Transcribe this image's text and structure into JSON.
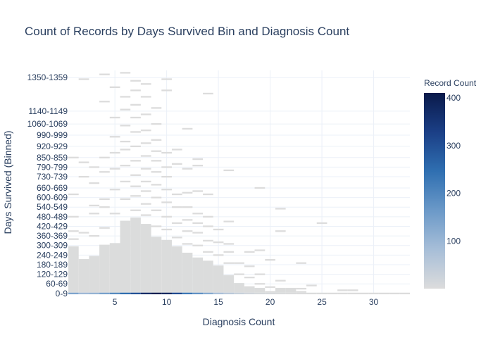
{
  "chart_data": {
    "type": "heatmap",
    "title": "Count of Records by Days Survived Bin and Diagnosis Count",
    "xlabel": "Diagnosis Count",
    "ylabel": "Days Survived (Binned)",
    "x_ticks": [
      5,
      10,
      15,
      20,
      25,
      30
    ],
    "y_tick_labels": [
      "0-9",
      "60-69",
      "120-129",
      "180-189",
      "240-249",
      "300-309",
      "360-369",
      "420-429",
      "480-489",
      "540-549",
      "600-609",
      "660-669",
      "730-739",
      "790-799",
      "850-859",
      "920-929",
      "990-999",
      "1060-1069",
      "1140-1149",
      "1350-1359"
    ],
    "colorbar": {
      "title": "Record Count",
      "ticks": [
        100,
        200,
        300,
        400
      ],
      "range": [
        1,
        410
      ],
      "colorscale": [
        "#dcdcdc",
        "#a7bed8",
        "#6b99c8",
        "#2f6fb1",
        "#1b3f86",
        "#0a1a4a"
      ]
    },
    "bottom_row_0_9": [
      {
        "x": 1,
        "count": 140
      },
      {
        "x": 2,
        "count": 95
      },
      {
        "x": 3,
        "count": 110
      },
      {
        "x": 4,
        "count": 150
      },
      {
        "x": 5,
        "count": 195
      },
      {
        "x": 6,
        "count": 250
      },
      {
        "x": 7,
        "count": 300
      },
      {
        "x": 8,
        "count": 370
      },
      {
        "x": 9,
        "count": 400
      },
      {
        "x": 10,
        "count": 380
      },
      {
        "x": 11,
        "count": 310
      },
      {
        "x": 12,
        "count": 230
      },
      {
        "x": 13,
        "count": 180
      },
      {
        "x": 14,
        "count": 130
      },
      {
        "x": 15,
        "count": 80
      },
      {
        "x": 16,
        "count": 55
      },
      {
        "x": 17,
        "count": 35
      },
      {
        "x": 18,
        "count": 20
      },
      {
        "x": 19,
        "count": 12
      },
      {
        "x": 20,
        "count": 8
      },
      {
        "x": 21,
        "count": 5
      },
      {
        "x": 22,
        "count": 4
      },
      {
        "x": 23,
        "count": 3
      },
      {
        "x": 24,
        "count": 2
      },
      {
        "x": 25,
        "count": 2
      },
      {
        "x": 26,
        "count": 1
      },
      {
        "x": 27,
        "count": 1
      },
      {
        "x": 28,
        "count": 1
      },
      {
        "x": 29,
        "count": 1
      },
      {
        "x": 30,
        "count": 1
      },
      {
        "x": 31,
        "count": 1
      },
      {
        "x": 32,
        "count": 1
      },
      {
        "x": 33,
        "count": 1
      }
    ],
    "filled_column_extent_days": [
      {
        "x": 1,
        "max_day": 290
      },
      {
        "x": 2,
        "max_day": 210
      },
      {
        "x": 3,
        "max_day": 230
      },
      {
        "x": 4,
        "max_day": 300
      },
      {
        "x": 5,
        "max_day": 310
      },
      {
        "x": 6,
        "max_day": 450
      },
      {
        "x": 7,
        "max_day": 470
      },
      {
        "x": 8,
        "max_day": 430
      },
      {
        "x": 9,
        "max_day": 350
      },
      {
        "x": 10,
        "max_day": 330
      },
      {
        "x": 11,
        "max_day": 290
      },
      {
        "x": 12,
        "max_day": 250
      },
      {
        "x": 13,
        "max_day": 220
      },
      {
        "x": 14,
        "max_day": 200
      },
      {
        "x": 15,
        "max_day": 170
      },
      {
        "x": 16,
        "max_day": 110
      },
      {
        "x": 17,
        "max_day": 60
      },
      {
        "x": 18,
        "max_day": 40
      },
      {
        "x": 19,
        "max_day": 30
      },
      {
        "x": 20,
        "max_day": 10
      },
      {
        "x": 21,
        "max_day": 30
      },
      {
        "x": 22,
        "max_day": 30
      },
      {
        "x": 23,
        "max_day": 10
      }
    ],
    "sparse_cells": [
      {
        "x": 1,
        "day_bin_start": 340
      },
      {
        "x": 1,
        "day_bin_start": 390
      },
      {
        "x": 1,
        "day_bin_start": 480
      },
      {
        "x": 1,
        "day_bin_start": 620
      },
      {
        "x": 1,
        "day_bin_start": 850
      },
      {
        "x": 2,
        "day_bin_start": 380
      },
      {
        "x": 2,
        "day_bin_start": 730
      },
      {
        "x": 2,
        "day_bin_start": 820
      },
      {
        "x": 2,
        "day_bin_start": 1340
      },
      {
        "x": 3,
        "day_bin_start": 360
      },
      {
        "x": 3,
        "day_bin_start": 500
      },
      {
        "x": 3,
        "day_bin_start": 550
      },
      {
        "x": 3,
        "day_bin_start": 690
      },
      {
        "x": 3,
        "day_bin_start": 790
      },
      {
        "x": 4,
        "day_bin_start": 410
      },
      {
        "x": 4,
        "day_bin_start": 540
      },
      {
        "x": 4,
        "day_bin_start": 590
      },
      {
        "x": 4,
        "day_bin_start": 760
      },
      {
        "x": 4,
        "day_bin_start": 850
      },
      {
        "x": 4,
        "day_bin_start": 1200
      },
      {
        "x": 4,
        "day_bin_start": 1370
      },
      {
        "x": 5,
        "day_bin_start": 500
      },
      {
        "x": 5,
        "day_bin_start": 650
      },
      {
        "x": 5,
        "day_bin_start": 780
      },
      {
        "x": 5,
        "day_bin_start": 880
      },
      {
        "x": 5,
        "day_bin_start": 980
      },
      {
        "x": 5,
        "day_bin_start": 1100
      },
      {
        "x": 5,
        "day_bin_start": 1290
      },
      {
        "x": 6,
        "day_bin_start": 590
      },
      {
        "x": 6,
        "day_bin_start": 700
      },
      {
        "x": 6,
        "day_bin_start": 800
      },
      {
        "x": 6,
        "day_bin_start": 900
      },
      {
        "x": 6,
        "day_bin_start": 950
      },
      {
        "x": 6,
        "day_bin_start": 1050
      },
      {
        "x": 6,
        "day_bin_start": 1150
      },
      {
        "x": 6,
        "day_bin_start": 1230
      },
      {
        "x": 6,
        "day_bin_start": 1380
      },
      {
        "x": 7,
        "day_bin_start": 520
      },
      {
        "x": 7,
        "day_bin_start": 610
      },
      {
        "x": 7,
        "day_bin_start": 670
      },
      {
        "x": 7,
        "day_bin_start": 740
      },
      {
        "x": 7,
        "day_bin_start": 830
      },
      {
        "x": 7,
        "day_bin_start": 920
      },
      {
        "x": 7,
        "day_bin_start": 1010
      },
      {
        "x": 7,
        "day_bin_start": 1100
      },
      {
        "x": 7,
        "day_bin_start": 1180
      },
      {
        "x": 7,
        "day_bin_start": 1270
      },
      {
        "x": 7,
        "day_bin_start": 1330
      },
      {
        "x": 8,
        "day_bin_start": 490
      },
      {
        "x": 8,
        "day_bin_start": 560
      },
      {
        "x": 8,
        "day_bin_start": 640
      },
      {
        "x": 8,
        "day_bin_start": 700
      },
      {
        "x": 8,
        "day_bin_start": 780
      },
      {
        "x": 8,
        "day_bin_start": 860
      },
      {
        "x": 8,
        "day_bin_start": 940
      },
      {
        "x": 8,
        "day_bin_start": 1020
      },
      {
        "x": 8,
        "day_bin_start": 1120
      },
      {
        "x": 8,
        "day_bin_start": 1230
      },
      {
        "x": 8,
        "day_bin_start": 1310
      },
      {
        "x": 9,
        "day_bin_start": 420
      },
      {
        "x": 9,
        "day_bin_start": 520
      },
      {
        "x": 9,
        "day_bin_start": 600
      },
      {
        "x": 9,
        "day_bin_start": 680
      },
      {
        "x": 9,
        "day_bin_start": 760
      },
      {
        "x": 9,
        "day_bin_start": 830
      },
      {
        "x": 9,
        "day_bin_start": 890
      },
      {
        "x": 9,
        "day_bin_start": 960
      },
      {
        "x": 9,
        "day_bin_start": 1060
      },
      {
        "x": 9,
        "day_bin_start": 1160
      },
      {
        "x": 10,
        "day_bin_start": 400
      },
      {
        "x": 10,
        "day_bin_start": 480
      },
      {
        "x": 10,
        "day_bin_start": 570
      },
      {
        "x": 10,
        "day_bin_start": 650
      },
      {
        "x": 10,
        "day_bin_start": 730
      },
      {
        "x": 10,
        "day_bin_start": 790
      },
      {
        "x": 10,
        "day_bin_start": 880
      },
      {
        "x": 10,
        "day_bin_start": 1270
      },
      {
        "x": 10,
        "day_bin_start": 1340
      },
      {
        "x": 11,
        "day_bin_start": 350
      },
      {
        "x": 11,
        "day_bin_start": 440
      },
      {
        "x": 11,
        "day_bin_start": 540
      },
      {
        "x": 11,
        "day_bin_start": 620
      },
      {
        "x": 11,
        "day_bin_start": 810
      },
      {
        "x": 11,
        "day_bin_start": 900
      },
      {
        "x": 12,
        "day_bin_start": 310
      },
      {
        "x": 12,
        "day_bin_start": 390
      },
      {
        "x": 12,
        "day_bin_start": 460
      },
      {
        "x": 12,
        "day_bin_start": 540
      },
      {
        "x": 12,
        "day_bin_start": 630
      },
      {
        "x": 12,
        "day_bin_start": 780
      },
      {
        "x": 12,
        "day_bin_start": 1030
      },
      {
        "x": 13,
        "day_bin_start": 300
      },
      {
        "x": 13,
        "day_bin_start": 380
      },
      {
        "x": 13,
        "day_bin_start": 440
      },
      {
        "x": 13,
        "day_bin_start": 500
      },
      {
        "x": 13,
        "day_bin_start": 640
      },
      {
        "x": 13,
        "day_bin_start": 800
      },
      {
        "x": 13,
        "day_bin_start": 840
      },
      {
        "x": 14,
        "day_bin_start": 260
      },
      {
        "x": 14,
        "day_bin_start": 330
      },
      {
        "x": 14,
        "day_bin_start": 420
      },
      {
        "x": 14,
        "day_bin_start": 480
      },
      {
        "x": 14,
        "day_bin_start": 620
      },
      {
        "x": 14,
        "day_bin_start": 1250
      },
      {
        "x": 15,
        "day_bin_start": 240
      },
      {
        "x": 15,
        "day_bin_start": 320
      },
      {
        "x": 15,
        "day_bin_start": 400
      },
      {
        "x": 16,
        "day_bin_start": 190
      },
      {
        "x": 16,
        "day_bin_start": 260
      },
      {
        "x": 16,
        "day_bin_start": 310
      },
      {
        "x": 16,
        "day_bin_start": 450
      },
      {
        "x": 16,
        "day_bin_start": 770
      },
      {
        "x": 17,
        "day_bin_start": 120
      },
      {
        "x": 17,
        "day_bin_start": 190
      },
      {
        "x": 18,
        "day_bin_start": 100
      },
      {
        "x": 18,
        "day_bin_start": 170
      },
      {
        "x": 18,
        "day_bin_start": 260
      },
      {
        "x": 19,
        "day_bin_start": 60
      },
      {
        "x": 19,
        "day_bin_start": 120
      },
      {
        "x": 19,
        "day_bin_start": 270
      },
      {
        "x": 19,
        "day_bin_start": 660
      },
      {
        "x": 20,
        "day_bin_start": 40
      },
      {
        "x": 20,
        "day_bin_start": 210
      },
      {
        "x": 21,
        "day_bin_start": 80
      },
      {
        "x": 21,
        "day_bin_start": 390
      },
      {
        "x": 21,
        "day_bin_start": 530
      },
      {
        "x": 23,
        "day_bin_start": 30
      },
      {
        "x": 23,
        "day_bin_start": 190
      },
      {
        "x": 24,
        "day_bin_start": 50
      },
      {
        "x": 25,
        "day_bin_start": 440
      },
      {
        "x": 27,
        "day_bin_start": 20
      },
      {
        "x": 28,
        "day_bin_start": 20
      }
    ]
  }
}
